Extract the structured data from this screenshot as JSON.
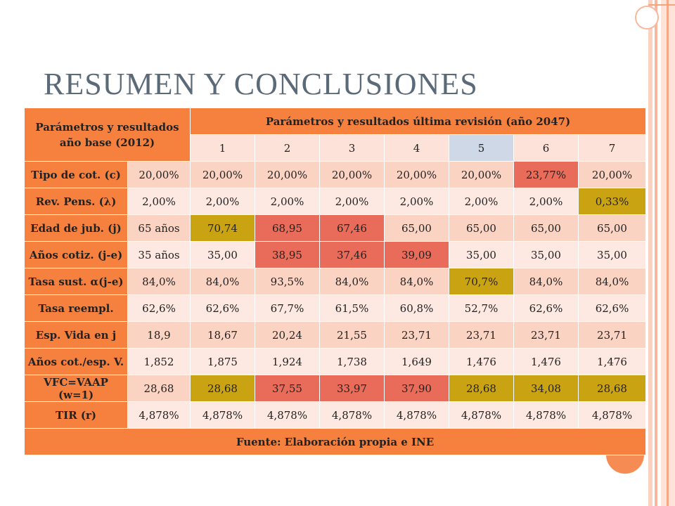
{
  "slide": {
    "title": "RESUMEN Y CONCLUSIONES",
    "colors": {
      "accent": "#f6813e",
      "row_light": "#fbd3c3",
      "row_lighter": "#fde9e1",
      "highlight_red": "#e96b59",
      "highlight_gold": "#c9a312",
      "selected_header": "#cfd8e6",
      "title_color": "#5b6a78"
    }
  },
  "table": {
    "header_left_line1": "Parámetros y resultados",
    "header_left_line2": "año base (2012)",
    "header_main": "Parámetros y resultados última revisión (año 2047)",
    "columns": [
      "1",
      "2",
      "3",
      "4",
      "5",
      "6",
      "7"
    ],
    "rows": [
      {
        "label": "Tipo de cot. (c)",
        "base": "20,00%",
        "values": [
          "20,00%",
          "20,00%",
          "20,00%",
          "20,00%",
          "20,00%",
          "23,77%",
          "20,00%"
        ],
        "highlight": [
          "",
          "",
          "",
          "",
          "",
          "red",
          ""
        ]
      },
      {
        "label": "Rev. Pens. (λ)",
        "base": "2,00%",
        "values": [
          "2,00%",
          "2,00%",
          "2,00%",
          "2,00%",
          "2,00%",
          "2,00%",
          "0,33%"
        ],
        "highlight": [
          "",
          "",
          "",
          "",
          "",
          "",
          "gold"
        ]
      },
      {
        "label": "Edad de jub. (j)",
        "base": "65 años",
        "values": [
          "70,74",
          "68,95",
          "67,46",
          "65,00",
          "65,00",
          "65,00",
          "65,00"
        ],
        "highlight": [
          "gold",
          "red",
          "red",
          "",
          "",
          "",
          ""
        ]
      },
      {
        "label": "Años cotiz. (j-e)",
        "base": "35 años",
        "values": [
          "35,00",
          "38,95",
          "37,46",
          "39,09",
          "35,00",
          "35,00",
          "35,00"
        ],
        "highlight": [
          "",
          "red",
          "red",
          "red",
          "",
          "",
          ""
        ]
      },
      {
        "label": "Tasa sust. α(j-e)",
        "base": "84,0%",
        "values": [
          "84,0%",
          "93,5%",
          "84,0%",
          "84,0%",
          "70,7%",
          "84,0%",
          "84,0%"
        ],
        "highlight": [
          "",
          "",
          "",
          "",
          "gold",
          "",
          ""
        ]
      },
      {
        "label": "Tasa reempl.",
        "base": "62,6%",
        "values": [
          "62,6%",
          "67,7%",
          "61,5%",
          "60,8%",
          "52,7%",
          "62,6%",
          "62,6%"
        ],
        "highlight": [
          "",
          "",
          "",
          "",
          "",
          "",
          ""
        ]
      },
      {
        "label": "Esp. Vida en j",
        "base": "18,9",
        "values": [
          "18,67",
          "20,24",
          "21,55",
          "23,71",
          "23,71",
          "23,71",
          "23,71"
        ],
        "highlight": [
          "",
          "",
          "",
          "",
          "",
          "",
          ""
        ]
      },
      {
        "label": "Años cot./esp. V.",
        "base": "1,852",
        "values": [
          "1,875",
          "1,924",
          "1,738",
          "1,649",
          "1,476",
          "1,476",
          "1,476"
        ],
        "highlight": [
          "",
          "",
          "",
          "",
          "",
          "",
          ""
        ]
      },
      {
        "label": "VFC=VAAP (w=1)",
        "base": "28,68",
        "values": [
          "28,68",
          "37,55",
          "33,97",
          "37,90",
          "28,68",
          "34,08",
          "28,68"
        ],
        "highlight": [
          "gold",
          "red",
          "red",
          "red",
          "gold",
          "gold",
          "gold"
        ]
      },
      {
        "label": "TIR (r)",
        "base": "4,878%",
        "values": [
          "4,878%",
          "4,878%",
          "4,878%",
          "4,878%",
          "4,878%",
          "4,878%",
          "4,878%"
        ],
        "highlight": [
          "",
          "",
          "",
          "",
          "",
          "",
          ""
        ]
      }
    ],
    "footer": "Fuente: Elaboración propia e INE"
  }
}
